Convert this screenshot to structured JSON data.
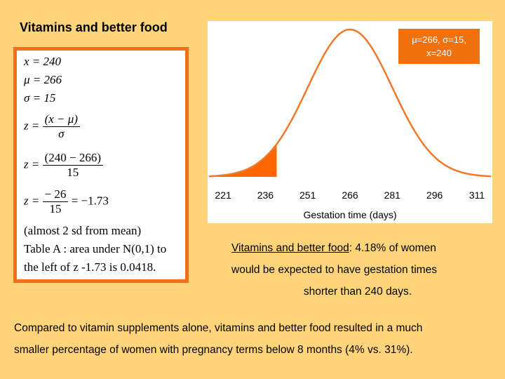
{
  "slide": {
    "title": "Vitamins and better food"
  },
  "formulas": {
    "x_line": "x = 240",
    "mu_line": "μ = 266",
    "sigma_line": "σ = 15",
    "z_def_lhs": "z =",
    "z_def_num": "(x − μ)",
    "z_def_den": "σ",
    "z_sub_lhs": "z =",
    "z_sub_num": "(240 − 266)",
    "z_sub_den": "15",
    "z_res_lhs": "z =",
    "z_res_num": "− 26",
    "z_res_den": "15",
    "z_res_rhs": "= −1.73",
    "note": "(almost 2 sd from mean)",
    "table_line1": "Table A : area under N(0,1) to",
    "table_line2": "the left of z -1.73 is 0.0418."
  },
  "param_box": {
    "line1": "μ=266, σ=15,",
    "line2": "x=240"
  },
  "result": {
    "label": "Vitamins and better food",
    "line1_rest": ": 4.18% of women",
    "line2": "would be expected to have gestation times",
    "line3": "shorter than 240 days."
  },
  "conclusion": {
    "line1": "Compared to vitamin supplements alone, vitamins and better food resulted in a much",
    "line2": "smaller percentage of women with pregnancy terms below 8 months (4% vs. 31%)."
  },
  "chart_data": {
    "type": "area",
    "title": "",
    "xlabel": "Gestation time (days)",
    "ylabel": "",
    "distribution": "normal",
    "mean": 266,
    "sd": 15,
    "shaded_below": 240,
    "xlim": [
      216,
      316
    ],
    "x_ticks": [
      221,
      236,
      251,
      266,
      281,
      296,
      311
    ],
    "curve_color": "#f0782a",
    "shade_color": "#ff6600",
    "grid": false
  }
}
